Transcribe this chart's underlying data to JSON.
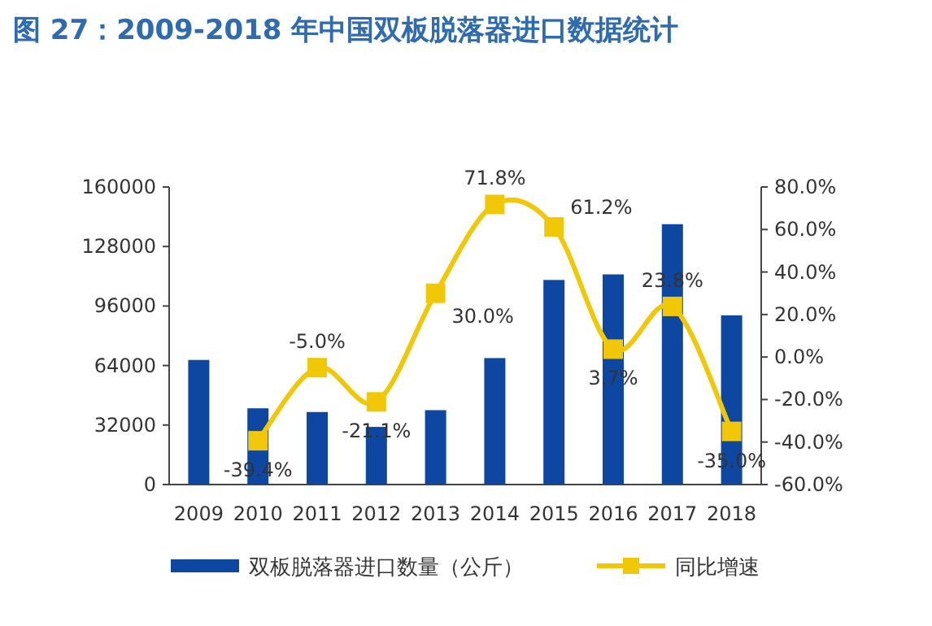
{
  "chart_data": {
    "type": "bar",
    "title": "图 27：2009-2018 年中国双板脱落器进口数据统计",
    "categories": [
      "2009",
      "2010",
      "2011",
      "2012",
      "2013",
      "2014",
      "2015",
      "2016",
      "2017",
      "2018"
    ],
    "series": [
      {
        "name": "双板脱落器进口数量（公斤）",
        "color": "#0d47a1",
        "values": [
          67000,
          41000,
          39000,
          31000,
          40000,
          68000,
          110000,
          113000,
          140000,
          91000
        ]
      },
      {
        "name": "同比增速",
        "type": "line",
        "axis": "y2",
        "color": "#f0c808",
        "marker": "square",
        "values": [
          null,
          -39.4,
          -5.0,
          -21.1,
          30.0,
          71.8,
          61.2,
          3.7,
          23.8,
          -35.0
        ],
        "value_labels": [
          null,
          "-39.4%",
          "-5.0%",
          "-21.1%",
          "30.0%",
          "71.8%",
          "61.2%",
          "3.7%",
          "23.8%",
          "-35.0%"
        ]
      }
    ],
    "ylim": [
      0,
      160000
    ],
    "yticks": [
      0,
      32000,
      64000,
      96000,
      128000,
      160000
    ],
    "y2lim": [
      -60,
      80
    ],
    "y2ticks": [
      {
        "value": -60,
        "label": "-60.0%"
      },
      {
        "value": -40,
        "label": "-40.0%"
      },
      {
        "value": -20,
        "label": "-20.0%"
      },
      {
        "value": 0,
        "label": "0.0%"
      },
      {
        "value": 20,
        "label": "20.0%"
      },
      {
        "value": 40,
        "label": "40.0%"
      },
      {
        "value": 60,
        "label": "60.0%"
      },
      {
        "value": 80,
        "label": "80.0%"
      }
    ],
    "grid": false,
    "legend": "bottom"
  }
}
